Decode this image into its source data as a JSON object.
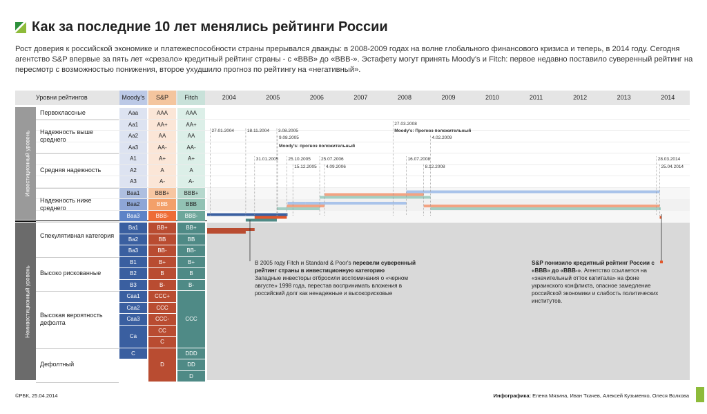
{
  "title": "Как за последние 10 лет менялись рейтинги России",
  "intro": "Рост доверия к российской экономике и платежеспособности страны прерывался дважды: в 2008-2009 годах на волне глобального финансового кризиса и теперь, в 2014 году. Сегодня агентство S&P впервые за пять лет «срезало» кредитный рейтинг страны - с «BBB» до «BBB-». Эстафету могут принять Moody's и Fitch: первое недавно поставило суверенный рейтинг на пересмотр с возможностью понижения, второе ухудшило прогноз по рейтингу на «негативный».",
  "header": {
    "levels": "Уровни рейтингов",
    "moodys": "Moody's",
    "sp": "S&P",
    "fitch": "Fitch"
  },
  "colors": {
    "moodys": "#3a5fa0",
    "sp": "#e2572b",
    "fitch": "#4f8a86"
  },
  "zones": {
    "investment": "Инвестиционный уровень",
    "speculative": "Неинвестиционный уровень"
  },
  "categories": [
    "Первоклассные",
    "Надежность выше среднего",
    "Средняя надежность",
    "Надежность ниже среднего",
    "Спекулятивная категория",
    "Высоко рискованные",
    "Высокая вероятность дефолта",
    "Дефолтный"
  ],
  "ratings_moodys": [
    "Aaa",
    "Aa1",
    "Aa2",
    "Aa3",
    "A1",
    "A2",
    "A3",
    "Baa1",
    "Baa2",
    "Baa3",
    "Ba1",
    "Ba2",
    "Ba3",
    "B1",
    "B2",
    "B3",
    "Caa1",
    "Caa2",
    "Caa3",
    "Ca",
    "C"
  ],
  "ratings_sp": [
    "AAA",
    "AA+",
    "AA",
    "AA-",
    "A+",
    "A",
    "A-",
    "BBB+",
    "BBB",
    "BBB-",
    "BB+",
    "BB",
    "BB-",
    "B+",
    "B",
    "B-",
    "CCC+",
    "CCC",
    "CCC-",
    "CC",
    "C",
    "D"
  ],
  "ratings_fitch": [
    "AAA",
    "AA+",
    "AA",
    "AA-",
    "A+",
    "A",
    "A-",
    "BBB+",
    "BBB",
    "BBB-",
    "BB+",
    "BB",
    "BB-",
    "B+",
    "B",
    "B-",
    "CCC",
    "DDD",
    "DD",
    "D"
  ],
  "chart_data": {
    "type": "line",
    "title": "Как за последние 10 лет менялись рейтинги России",
    "x": [
      "2004",
      "2005",
      "2006",
      "2007",
      "2008",
      "2009",
      "2010",
      "2011",
      "2012",
      "2013",
      "2014"
    ],
    "series": [
      {
        "name": "Moody's",
        "steps": [
          {
            "from": "2004-01-01",
            "to": "2005-11-01",
            "rating": "Baa3"
          },
          {
            "from": "2005-11-01",
            "to": "2006-03-31",
            "rating": "Baa2"
          },
          {
            "from": "2006-03-31",
            "to": "2008-07-16",
            "rating": "Baa2"
          },
          {
            "from": "2008-07-16",
            "to": "2014-04-25",
            "rating": "Baa1"
          }
        ]
      },
      {
        "name": "S&P",
        "steps": [
          {
            "from": "2004-01-01",
            "to": "2005-01-31",
            "rating": "BB+"
          },
          {
            "from": "2005-01-31",
            "to": "2005-10-25",
            "rating": "BBB-"
          },
          {
            "from": "2005-10-25",
            "to": "2006-09-04",
            "rating": "BBB"
          },
          {
            "from": "2006-09-04",
            "to": "2008-12-08",
            "rating": "BBB+"
          },
          {
            "from": "2008-12-08",
            "to": "2014-04-25",
            "rating": "BBB"
          },
          {
            "from": "2014-04-25",
            "to": "2014-06-01",
            "rating": "BBB-"
          }
        ]
      },
      {
        "name": "Fitch",
        "steps": [
          {
            "from": "2004-01-01",
            "to": "2004-11-18",
            "rating": "BB+"
          },
          {
            "from": "2004-11-18",
            "to": "2005-08-03",
            "rating": "BBB-"
          },
          {
            "from": "2005-08-03",
            "to": "2006-07-25",
            "rating": "BBB"
          },
          {
            "from": "2006-07-25",
            "to": "2009-02-04",
            "rating": "BBB+"
          },
          {
            "from": "2009-02-04",
            "to": "2014-06-01",
            "rating": "BBB"
          }
        ]
      }
    ],
    "events": [
      {
        "label": "27.01.2004",
        "year": "2004-01-27",
        "level": 1
      },
      {
        "label": "18.11.2004",
        "year": "2004-11-18",
        "level": 1
      },
      {
        "label": "3.08.2005",
        "year": "2005-08-03",
        "level": 1
      },
      {
        "label": "9.08.2005",
        "year": "2005-08-09",
        "level": 2
      },
      {
        "label": "Moody's: прогноз положительный",
        "year": "2005-08-09",
        "level": 3,
        "bold": true
      },
      {
        "label": "27.03.2008",
        "year": "2008-03-27",
        "level": 0
      },
      {
        "label": "Moody's: Прогноз положительный",
        "year": "2008-03-27",
        "level": 1,
        "bold": true
      },
      {
        "label": "4.02.2009",
        "year": "2009-02-04",
        "level": 2
      },
      {
        "label": "31.01.2005",
        "year": "2005-01-31",
        "level": 4
      },
      {
        "label": "25.10.2005",
        "year": "2005-10-25",
        "level": 4
      },
      {
        "label": "25.07.2006",
        "year": "2006-07-25",
        "level": 4
      },
      {
        "label": "15.12.2005",
        "year": "2005-12-15",
        "level": 5
      },
      {
        "label": "4.09.2006",
        "year": "2006-09-04",
        "level": 5
      },
      {
        "label": "16.07.2008",
        "year": "2008-07-16",
        "level": 4
      },
      {
        "label": "8.12.2008",
        "year": "2008-12-08",
        "level": 5
      },
      {
        "label": "28.03.2014",
        "year": "2014-03-28",
        "level": 4
      },
      {
        "label": "25.04.2014",
        "year": "2014-04-25",
        "level": 5
      }
    ]
  },
  "notes": {
    "note1_bold": "перевели суверенный рейтинг страны в инвестиционную категорию",
    "note1_pre": "В 2005 году Fitch и Standard & Poor's ",
    "note1_post": "Западные инвесторы отбросили воспоминания о «черном августе» 1998 года, перестав воспринимать вложения в российский долг как ненадежные и высокорисковые",
    "note2_bold": "S&P понизило кредитный рейтинг России с «BBB» до «BBB-»",
    "note2_post": ". Агентство ссылается на «значительный отток капитала» на фоне украинского конфликта, опасное замедление российской экономики и слабость политических институтов."
  },
  "footer": {
    "left": "©РБК, 25.04.2014",
    "right_label": "Инфографика:",
    "right_names": "Елена Мязина, Иван Ткачев, Алексей Кузьменко, Олеся Волкова"
  }
}
